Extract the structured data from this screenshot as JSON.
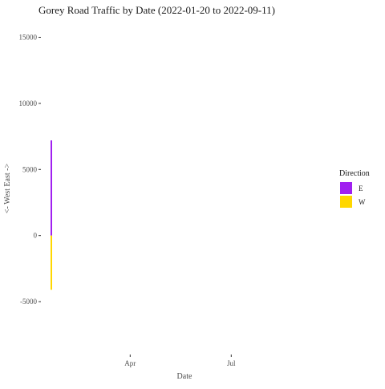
{
  "chart_data": {
    "type": "bar",
    "title": "Gorey Road Traffic by Date (2022-01-20 to 2022-09-11)",
    "xlabel": "Date",
    "ylabel": "<- West   East ->",
    "x_ticks": [
      "Apr",
      "Jul"
    ],
    "x_tick_dates": [
      "2022-04-01",
      "2022-07-01"
    ],
    "xlim": [
      "2022-01-20",
      "2022-09-11"
    ],
    "y_ticks": [
      15000,
      10000,
      5000,
      0,
      -5000
    ],
    "y_tick_labels": [
      "15000",
      "10000",
      "5000",
      "0",
      "-5000"
    ],
    "ylim": [
      -9000,
      16000
    ],
    "grid": false,
    "legend": {
      "title": "Direction",
      "position": "right"
    },
    "series": [
      {
        "name": "E",
        "color": "#a020f0",
        "points": [
          {
            "x": "2022-01-20",
            "y": 7200
          }
        ]
      },
      {
        "name": "W",
        "color": "#ffd700",
        "points": [
          {
            "x": "2022-01-20",
            "y": -4100
          }
        ]
      }
    ]
  }
}
